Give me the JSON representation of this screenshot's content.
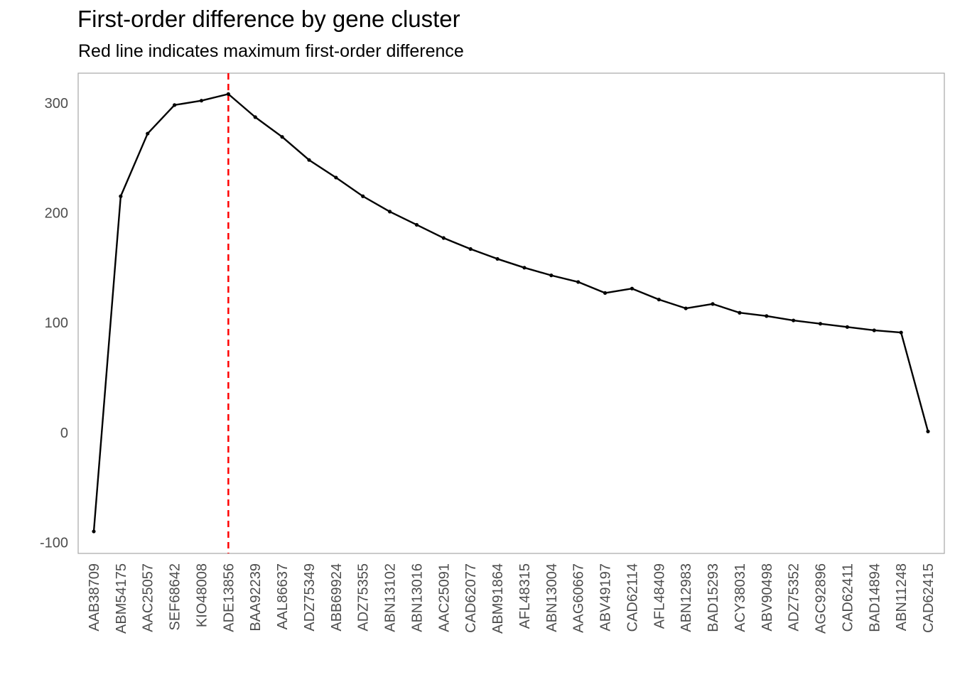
{
  "chart_data": {
    "type": "line",
    "title": "First-order difference by gene cluster",
    "subtitle": "Red line indicates maximum first-order difference",
    "xlabel": "",
    "ylabel": "",
    "categories": [
      "AAB38709",
      "ABM54175",
      "AAC25057",
      "SEF68642",
      "KIO48008",
      "ADE13856",
      "BAA92239",
      "AAL86637",
      "ADZ75349",
      "ABB69924",
      "ADZ75355",
      "ABN13102",
      "ABN13016",
      "AAC25091",
      "CAD62077",
      "ABM91864",
      "AFL48315",
      "ABN13004",
      "AAG60667",
      "ABV49197",
      "CAD62114",
      "AFL48409",
      "ABN12983",
      "BAD15293",
      "ACY38031",
      "ABV90498",
      "ADZ75352",
      "AGC92896",
      "CAD62411",
      "BAD14894",
      "ABN11248",
      "CAD62415"
    ],
    "values": [
      -90,
      215,
      272,
      298,
      302,
      308,
      287,
      269,
      248,
      232,
      215,
      201,
      189,
      177,
      167,
      158,
      150,
      143,
      137,
      127,
      131,
      121,
      113,
      117,
      109,
      106,
      102,
      99,
      96,
      93,
      91,
      1
    ],
    "ylim": [
      -110,
      327
    ],
    "yticks": [
      -100,
      0,
      100,
      200,
      300
    ],
    "max_marker_category": "ADE13856",
    "line_color": "#000000",
    "marker_color": "#ff0000",
    "grid": false,
    "legend": "none"
  }
}
